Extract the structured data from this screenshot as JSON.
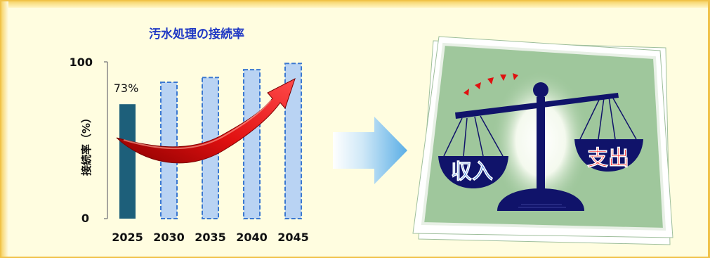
{
  "chart_data": {
    "type": "bar",
    "title": "汚水処理の接続率",
    "ylabel": "接続率（%）",
    "xlabel": "",
    "categories": [
      "2025",
      "2030",
      "2035",
      "2040",
      "2045"
    ],
    "values": [
      73,
      87,
      90,
      95,
      99
    ],
    "value_labels": [
      "73%",
      "",
      "",
      "",
      ""
    ],
    "ylim": [
      0,
      100
    ],
    "yticks": [
      "0",
      "100"
    ],
    "grid": false,
    "legend": "none",
    "bar_styles": [
      "solid",
      "dashed",
      "dashed",
      "dashed",
      "dashed"
    ],
    "colors": {
      "solid_bar": "#1d5f7a",
      "projected_fill": "#b9d3f3",
      "projected_border": "#3b78d0",
      "trend_arrow": "#e01010"
    }
  },
  "illustration": {
    "income_label": "収入",
    "expense_label": "支出",
    "colors": {
      "income": "#2a73d8",
      "expense": "#ff1a1a",
      "balance": "#10136a",
      "card_bg": "#9fc79c",
      "flow_arrow": "#6fb7e8"
    }
  }
}
